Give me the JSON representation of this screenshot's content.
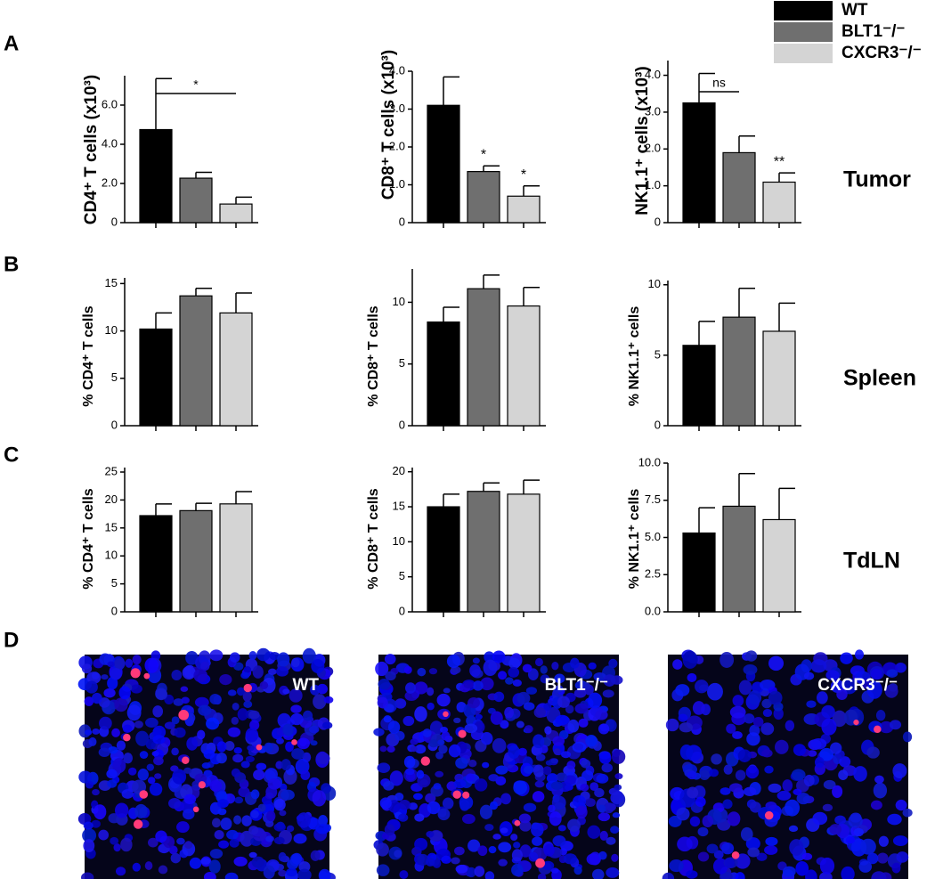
{
  "legend": [
    {
      "label": "WT",
      "color": "#000000"
    },
    {
      "label": "BLT1⁻/⁻",
      "color": "#6f6f6f"
    },
    {
      "label": "CXCR3⁻/⁻",
      "color": "#d4d4d4"
    }
  ],
  "panels": [
    "A",
    "B",
    "C",
    "D"
  ],
  "row_labels": [
    "Tumor",
    "Spleen",
    "TdLN"
  ],
  "chart_data": [
    {
      "type": "bar",
      "ylabel": "CD4⁺ T cells (x10³)",
      "categories": [
        null,
        null,
        null
      ],
      "values": [
        4.75,
        2.27,
        0.95
      ],
      "errors": [
        2.6,
        0.3,
        0.35
      ],
      "ylim": [
        0,
        7.5
      ],
      "yticks": [
        0,
        {
          "value": 2,
          "label": "2.0"
        },
        {
          "value": 4,
          "label": "4.0"
        },
        {
          "value": 6,
          "label": "6.0"
        }
      ],
      "annotations": [
        {
          "text": "*",
          "bars": [
            0,
            2
          ]
        }
      ]
    },
    {
      "type": "bar",
      "ylabel": "CD8⁺ T cells (x10³)",
      "categories": [
        null,
        null,
        null
      ],
      "values": [
        3.1,
        1.35,
        0.7
      ],
      "errors": [
        0.75,
        0.15,
        0.27
      ],
      "ylim": [
        0,
        4
      ],
      "yticks": [
        0,
        {
          "value": 1,
          "label": "1.0"
        },
        {
          "value": 2,
          "label": "2.0"
        },
        {
          "value": 3,
          "label": "3.0"
        },
        {
          "value": 4,
          "label": "4.0"
        }
      ],
      "annotations": [
        {
          "text": "*",
          "bars": [
            1
          ]
        },
        {
          "text": "*",
          "bars": [
            2
          ]
        }
      ]
    },
    {
      "type": "bar",
      "ylabel": "NK1.1⁺ cells (x10³)",
      "categories": [
        null,
        null,
        null
      ],
      "values": [
        3.25,
        1.9,
        1.1
      ],
      "errors": [
        0.8,
        0.45,
        0.25
      ],
      "ylim": [
        0,
        4.4
      ],
      "yticks": [
        0,
        {
          "value": 1,
          "label": "1.0"
        },
        {
          "value": 2,
          "label": "2.0"
        },
        {
          "value": 3,
          "label": "3.0"
        },
        {
          "value": 4,
          "label": "4.0"
        }
      ],
      "annotations": [
        {
          "text": "ns",
          "bars": [
            0,
            1
          ]
        },
        {
          "text": "**",
          "bars": [
            2
          ]
        }
      ]
    },
    {
      "type": "bar",
      "ylabel": "% CD4⁺ T cells",
      "categories": [
        null,
        null,
        null
      ],
      "values": [
        10.2,
        13.7,
        11.9
      ],
      "errors": [
        1.7,
        0.8,
        2.1
      ],
      "ylim": [
        0,
        15.6
      ],
      "yticks": [
        0,
        5,
        10,
        15
      ]
    },
    {
      "type": "bar",
      "ylabel": "% CD8⁺ T cells",
      "categories": [
        null,
        null,
        null
      ],
      "values": [
        8.4,
        11.1,
        9.7
      ],
      "errors": [
        1.2,
        1.1,
        1.5
      ],
      "ylim": [
        0,
        12.7
      ],
      "yticks": [
        0,
        5,
        10
      ]
    },
    {
      "type": "bar",
      "ylabel": "% NK1.1⁺ cells",
      "categories": [
        null,
        null,
        null
      ],
      "values": [
        5.7,
        7.7,
        6.7
      ],
      "errors": [
        1.7,
        2.05,
        2.0
      ],
      "ylim": [
        0,
        10.3
      ],
      "yticks": [
        0,
        5,
        10
      ]
    },
    {
      "type": "bar",
      "ylabel": "% CD4⁺ T cells",
      "categories": [
        null,
        null,
        null
      ],
      "values": [
        17.2,
        18.1,
        19.3
      ],
      "errors": [
        2.1,
        1.3,
        2.2
      ],
      "ylim": [
        0,
        25.8
      ],
      "yticks": [
        0,
        5,
        10,
        15,
        20,
        25
      ]
    },
    {
      "type": "bar",
      "ylabel": "% CD8⁺ T cells",
      "categories": [
        null,
        null,
        null
      ],
      "values": [
        15,
        17.2,
        16.8
      ],
      "errors": [
        1.8,
        1.2,
        2.0
      ],
      "ylim": [
        0,
        20.6
      ],
      "yticks": [
        0,
        5,
        10,
        15,
        20
      ]
    },
    {
      "type": "bar",
      "ylabel": "% NK1.1⁺ cells",
      "categories": [
        null,
        null,
        null
      ],
      "values": [
        5.3,
        7.1,
        6.2
      ],
      "errors": [
        1.7,
        2.2,
        2.1
      ],
      "ylim": [
        0,
        10
      ],
      "yticks": [
        {
          "value": 0,
          "label": "0.0"
        },
        2.5,
        {
          "value": 5,
          "label": "5.0"
        },
        7.5,
        {
          "value": 10,
          "label": "10.0"
        }
      ]
    }
  ],
  "images": [
    {
      "label": "WT"
    },
    {
      "label": "BLT1⁻/⁻"
    },
    {
      "label": "CXCR3⁻/⁻"
    }
  ]
}
